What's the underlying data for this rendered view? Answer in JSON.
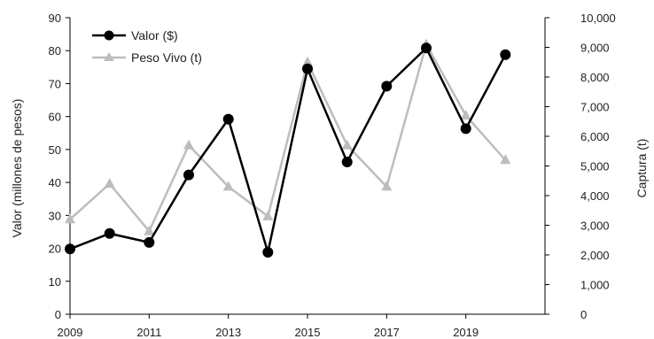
{
  "chart_data": {
    "type": "line",
    "x": [
      2009,
      2010,
      2011,
      2012,
      2013,
      2014,
      2015,
      2016,
      2017,
      2018,
      2019,
      2020
    ],
    "xticks": [
      "2009",
      "2011",
      "2013",
      "2015",
      "2017",
      "2019"
    ],
    "xlim": [
      2009,
      2021
    ],
    "ylabel": "Valor (millones de pesos)",
    "ylabel_right": "Captura (t)",
    "ylim": [
      0,
      90
    ],
    "yticks": [
      "0",
      "10",
      "20",
      "30",
      "40",
      "50",
      "60",
      "70",
      "80",
      "90"
    ],
    "ylim_right": [
      0,
      10000
    ],
    "yticks_right": [
      "0",
      "1,000",
      "2,000",
      "3,000",
      "4,000",
      "5,000",
      "6,000",
      "7,000",
      "8,000",
      "9,000",
      "10,000"
    ],
    "legend_position": "top-left",
    "grid": false,
    "series": [
      {
        "name": "Valor ($)",
        "axis": "left",
        "color": "#000000",
        "marker": "circle",
        "values": [
          19.8,
          24.5,
          21.8,
          42.3,
          59.2,
          18.8,
          74.5,
          46.2,
          69.2,
          80.8,
          56.3,
          78.8
        ]
      },
      {
        "name": "Peso Vivo (t)",
        "axis": "right",
        "color": "#bdbdbd",
        "marker": "triangle",
        "values": [
          3200,
          4400,
          2800,
          5700,
          4300,
          3300,
          8500,
          5700,
          4300,
          9100,
          6700,
          5200
        ]
      }
    ]
  }
}
